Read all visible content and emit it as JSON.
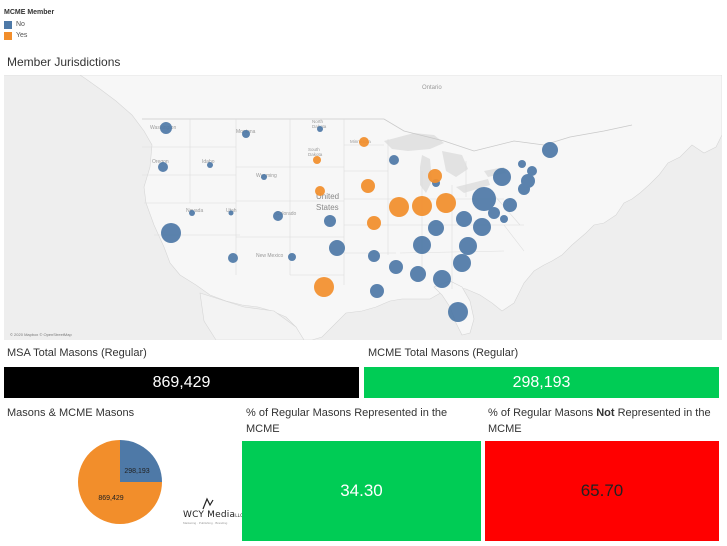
{
  "legend": {
    "title": "MCME Member",
    "items": [
      {
        "label": "No",
        "color": "#4e79a7"
      },
      {
        "label": "Yes",
        "color": "#f28e2b"
      }
    ]
  },
  "map": {
    "title": "Member Jurisdictions",
    "credit": "© 2020 Mapbox © OpenStreetMap",
    "labels": {
      "country": "United States",
      "ontario": "Ontario",
      "washington": "Washington",
      "montana": "Montana",
      "oregon": "Oregon",
      "idaho": "Idaho",
      "wyoming": "Wyoming",
      "nevada": "Nevada",
      "utah": "Utah",
      "colorado": "Colorado",
      "new_mexico": "New Mexico",
      "north_dakota": "North Dakota",
      "south_dakota": "South Dakota",
      "minnesota": "Minnesota"
    }
  },
  "kpis": {
    "msa_title": "MSA Total Masons (Regular)",
    "msa_value": "869,429",
    "mcme_title": "MCME Total Masons (Regular)",
    "mcme_value": "298,193"
  },
  "pie": {
    "title": "Masons & MCME Masons",
    "mcme_label": "298,193",
    "total_label": "869,429"
  },
  "represented": {
    "title": "% of Regular Masons Represented in the MCME",
    "value": "34.30"
  },
  "not_represented": {
    "title_pre": "% of Regular Masons ",
    "title_bold": "Not",
    "title_post": " Represented in the MCME",
    "value": "65.70"
  },
  "logo": {
    "name": "WCY Media",
    "suffix": "LLC",
    "tagline": "Marketing · Publishing · Branding"
  },
  "colors": {
    "blue": "#4e79a7",
    "orange": "#f28e2b",
    "green": "#00cc55",
    "red": "#ff0000",
    "black": "#000000"
  }
}
